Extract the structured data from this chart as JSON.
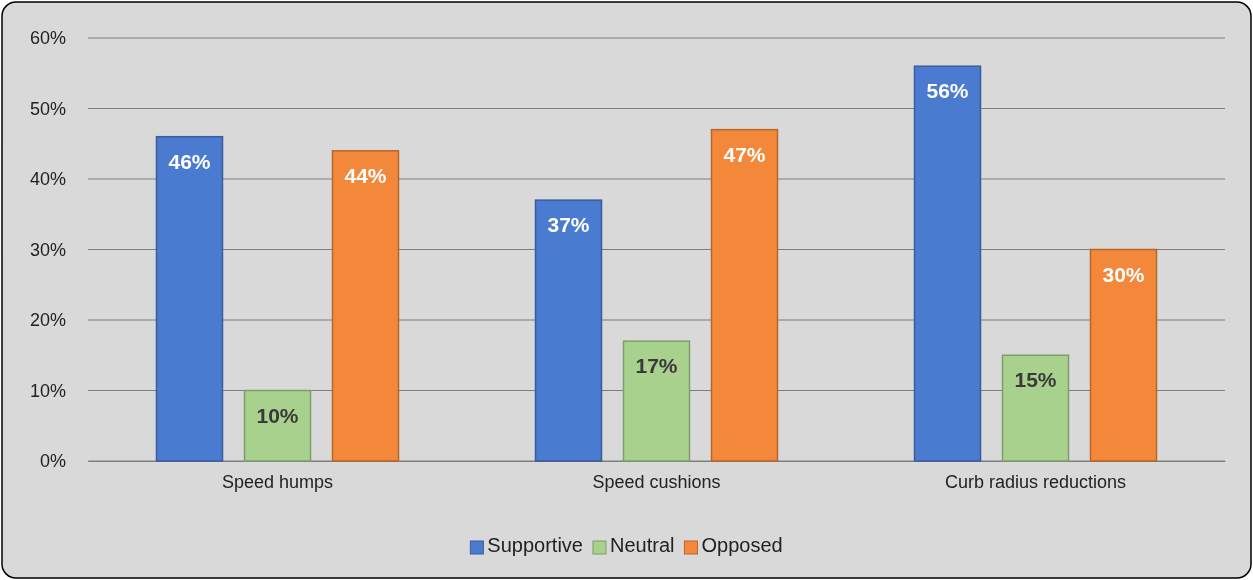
{
  "chart_data": {
    "type": "bar",
    "categories": [
      "Speed humps",
      "Speed cushions",
      "Curb radius reductions"
    ],
    "series": [
      {
        "name": "Supportive",
        "color": "#4a7bd0",
        "values": [
          46,
          37,
          56
        ],
        "value_labels": [
          "46%",
          "37%",
          "56%"
        ]
      },
      {
        "name": "Neutral",
        "color": "#a9d18e",
        "values": [
          10,
          17,
          15
        ],
        "value_labels": [
          "10%",
          "17%",
          "15%"
        ]
      },
      {
        "name": "Opposed",
        "color": "#f4883a",
        "values": [
          44,
          47,
          30
        ],
        "value_labels": [
          "44%",
          "47%",
          "30%"
        ]
      }
    ],
    "ylim": [
      0,
      60
    ],
    "yticks": [
      {
        "value": 0,
        "label": "0%"
      },
      {
        "value": 10,
        "label": "10%"
      },
      {
        "value": 20,
        "label": "20%"
      },
      {
        "value": 30,
        "label": "30%"
      },
      {
        "value": 40,
        "label": "40%"
      },
      {
        "value": 50,
        "label": "50%"
      },
      {
        "value": 60,
        "label": "60%"
      }
    ],
    "grid": "y",
    "legend": "bottom"
  }
}
